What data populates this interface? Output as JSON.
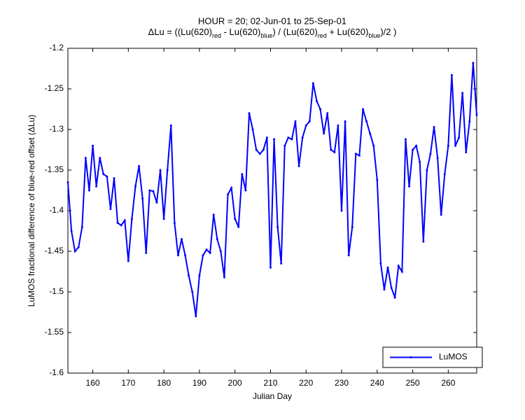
{
  "chart_data": {
    "type": "line",
    "title": "HOUR = 20; 02-Jun-01 to 25-Sep-01",
    "subtitle_parts": [
      "ΔLu = ((Lu(620)",
      "red",
      " - Lu(620)",
      "blue",
      ") / (Lu(620)",
      "red",
      " + Lu(620)",
      "blue",
      ")/2  )"
    ],
    "xlabel": "Julian Day",
    "ylabel": "LuMOS fractional difference of blue-red offset (ΔLu)",
    "x": [
      153,
      154,
      155,
      156,
      157,
      158,
      159,
      160,
      161,
      162,
      163,
      164,
      165,
      166,
      167,
      168,
      169,
      170,
      171,
      172,
      173,
      174,
      175,
      176,
      177,
      178,
      179,
      180,
      181,
      182,
      183,
      184,
      185,
      186,
      187,
      188,
      189,
      190,
      191,
      192,
      193,
      194,
      195,
      196,
      197,
      198,
      199,
      200,
      201,
      202,
      203,
      204,
      205,
      206,
      207,
      208,
      209,
      210,
      211,
      212,
      213,
      214,
      215,
      216,
      217,
      218,
      219,
      220,
      221,
      222,
      223,
      224,
      225,
      226,
      227,
      228,
      229,
      230,
      231,
      232,
      233,
      234,
      235,
      236,
      237,
      238,
      239,
      240,
      241,
      242,
      243,
      244,
      245,
      246,
      247,
      248,
      249,
      250,
      251,
      252,
      253,
      254,
      255,
      256,
      257,
      258,
      259,
      260,
      261,
      262,
      263,
      264,
      265,
      266,
      267,
      268
    ],
    "series": [
      {
        "name": "LuMOS",
        "color": "#0000ff",
        "values": [
          -1.365,
          -1.425,
          -1.45,
          -1.445,
          -1.42,
          -1.335,
          -1.375,
          -1.32,
          -1.37,
          -1.335,
          -1.355,
          -1.358,
          -1.398,
          -1.36,
          -1.415,
          -1.418,
          -1.412,
          -1.462,
          -1.41,
          -1.37,
          -1.345,
          -1.385,
          -1.452,
          -1.375,
          -1.376,
          -1.39,
          -1.35,
          -1.41,
          -1.35,
          -1.295,
          -1.415,
          -1.455,
          -1.435,
          -1.455,
          -1.48,
          -1.5,
          -1.53,
          -1.48,
          -1.455,
          -1.448,
          -1.452,
          -1.405,
          -1.435,
          -1.45,
          -1.482,
          -1.38,
          -1.372,
          -1.41,
          -1.42,
          -1.355,
          -1.375,
          -1.28,
          -1.3,
          -1.325,
          -1.33,
          -1.325,
          -1.31,
          -1.47,
          -1.312,
          -1.42,
          -1.465,
          -1.32,
          -1.31,
          -1.312,
          -1.29,
          -1.345,
          -1.31,
          -1.295,
          -1.29,
          -1.243,
          -1.265,
          -1.275,
          -1.305,
          -1.28,
          -1.325,
          -1.328,
          -1.295,
          -1.4,
          -1.29,
          -1.455,
          -1.42,
          -1.33,
          -1.332,
          -1.275,
          -1.29,
          -1.305,
          -1.32,
          -1.362,
          -1.465,
          -1.497,
          -1.47,
          -1.495,
          -1.507,
          -1.468,
          -1.475,
          -1.312,
          -1.37,
          -1.325,
          -1.32,
          -1.34,
          -1.438,
          -1.35,
          -1.33,
          -1.297,
          -1.335,
          -1.405,
          -1.355,
          -1.32,
          -1.233,
          -1.32,
          -1.31,
          -1.255,
          -1.328,
          -1.29,
          -1.218,
          -1.282
        ]
      }
    ],
    "xlim": [
      153,
      268
    ],
    "xticks": [
      160,
      170,
      180,
      190,
      200,
      210,
      220,
      230,
      240,
      250,
      260
    ],
    "ylim": [
      -1.6,
      -1.2
    ],
    "yticks": [
      -1.6,
      -1.55,
      -1.5,
      -1.45,
      -1.4,
      -1.35,
      -1.3,
      -1.25,
      -1.2
    ],
    "legend": "lower right"
  }
}
